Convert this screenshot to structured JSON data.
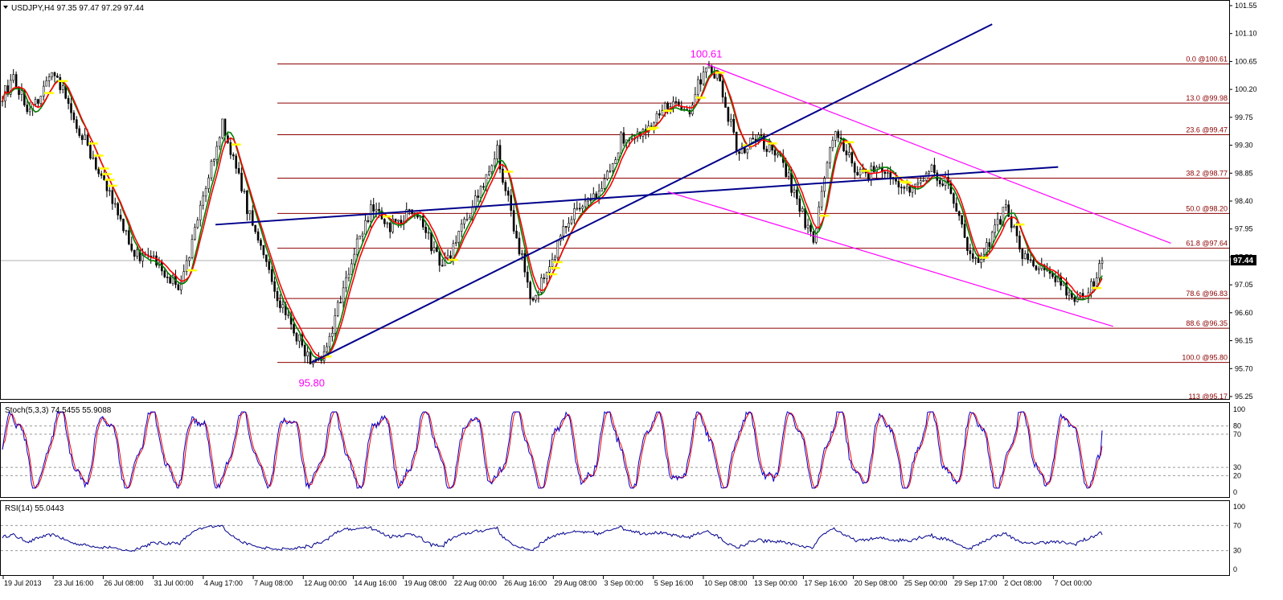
{
  "window": {
    "symbol_label": "USDJPY,H4  97.35 97.47 97.29 97.44"
  },
  "colors": {
    "candle": "#000000",
    "fib": "#8b0000",
    "channel": "#00008b",
    "downchannel": "#ff00ff",
    "ma_fast": "#ff0000",
    "ma_slow": "#008000",
    "stoch_main": "#0000cd",
    "stoch_signal": "#ff0000",
    "rsi": "#00008b",
    "highlight": "#ffff00"
  },
  "chart_data": [
    {
      "type": "candlestick",
      "name": "USDJPY,H4",
      "ohlc_label": "97.35 97.47 97.29 97.44",
      "last_price": 97.44,
      "last_price_label": "97.44",
      "ylim": [
        95.2,
        101.6
      ],
      "yticks": [
        "101.55",
        "101.10",
        "100.65",
        "100.20",
        "99.75",
        "99.30",
        "98.85",
        "98.40",
        "97.95",
        "97.50",
        "97.05",
        "96.60",
        "96.15",
        "95.70",
        "95.25"
      ],
      "xticks": [
        "19 Jul 2013",
        "23 Jul 16:00",
        "26 Jul 08:00",
        "31 Jul 00:00",
        "4 Aug 17:00",
        "7 Aug 08:00",
        "12 Aug 00:00",
        "14 Aug 16:00",
        "19 Aug 08:00",
        "22 Aug 00:00",
        "26 Aug 16:00",
        "29 Aug 08:00",
        "3 Sep 00:00",
        "5 Sep 16:00",
        "10 Sep 08:00",
        "13 Sep 00:00",
        "17 Sep 16:00",
        "20 Sep 08:00",
        "25 Sep 00:00",
        "29 Sep 17:00",
        "2 Oct 08:00",
        "7 Oct 00:00"
      ],
      "bars": 512,
      "price_path": [
        [
          0,
          100.1
        ],
        [
          8,
          100.35
        ],
        [
          20,
          99.8
        ],
        [
          38,
          100.45
        ],
        [
          55,
          99.6
        ],
        [
          70,
          98.9
        ],
        [
          95,
          97.6
        ],
        [
          112,
          97.4
        ],
        [
          130,
          97.0
        ],
        [
          148,
          98.6
        ],
        [
          160,
          99.7
        ],
        [
          178,
          98.3
        ],
        [
          200,
          96.8
        ],
        [
          225,
          95.8
        ],
        [
          236,
          96.0
        ],
        [
          250,
          97.2
        ],
        [
          268,
          98.3
        ],
        [
          282,
          98.0
        ],
        [
          300,
          98.3
        ],
        [
          320,
          97.3
        ],
        [
          342,
          98.3
        ],
        [
          360,
          99.2
        ],
        [
          372,
          98.0
        ],
        [
          385,
          96.8
        ],
        [
          398,
          97.4
        ],
        [
          412,
          98.1
        ],
        [
          435,
          98.5
        ],
        [
          450,
          99.4
        ],
        [
          468,
          99.6
        ],
        [
          480,
          99.9
        ],
        [
          500,
          99.9
        ],
        [
          512,
          100.61
        ],
        [
          522,
          100.3
        ],
        [
          535,
          99.2
        ],
        [
          550,
          99.4
        ],
        [
          568,
          99.0
        ],
        [
          590,
          97.7
        ],
        [
          605,
          99.6
        ],
        [
          622,
          98.8
        ],
        [
          640,
          98.9
        ],
        [
          660,
          98.6
        ],
        [
          675,
          98.9
        ],
        [
          690,
          98.6
        ],
        [
          705,
          97.4
        ],
        [
          712,
          97.5
        ],
        [
          730,
          98.3
        ],
        [
          745,
          97.4
        ],
        [
          760,
          97.3
        ],
        [
          780,
          96.8
        ],
        [
          792,
          97.0
        ],
        [
          800,
          97.44
        ]
      ],
      "fib_levels": [
        {
          "label": "0.0 @100.61",
          "price": 100.61
        },
        {
          "label": "13.0 @99.98",
          "price": 99.98
        },
        {
          "label": "23.6 @99.47",
          "price": 99.47
        },
        {
          "label": "38.2 @98.77",
          "price": 98.77
        },
        {
          "label": "50.0 @98.20",
          "price": 98.2
        },
        {
          "label": "61.8 @97.64",
          "price": 97.64
        },
        {
          "label": "78.6 @96.83",
          "price": 96.83
        },
        {
          "label": "88.6 @96.35",
          "price": 96.35
        },
        {
          "label": "100.0 @95.80",
          "price": 95.8
        },
        {
          "label": "113 @95.17",
          "price": 95.17
        }
      ],
      "annotations": [
        {
          "text": "100.61",
          "bar": 512,
          "price": 100.61
        },
        {
          "text": "95.80",
          "bar": 225,
          "price": 95.8
        }
      ],
      "trendlines": [
        {
          "kind": "channel",
          "p1": [
            225,
            95.8
          ],
          "p2": [
            720,
            101.25
          ]
        },
        {
          "kind": "channel",
          "p1": [
            155,
            98.02
          ],
          "p2": [
            768,
            98.95
          ]
        },
        {
          "kind": "downchannel",
          "p1": [
            512,
            100.61
          ],
          "p2": [
            850,
            97.72
          ]
        },
        {
          "kind": "downchannel",
          "p1": [
            484,
            98.55
          ],
          "p2": [
            808,
            96.38
          ]
        }
      ]
    },
    {
      "type": "line",
      "name": "Stoch(5,3,3)",
      "label": "Stoch(5,3,3) 74.5455 55.9088",
      "series": [
        {
          "name": "main",
          "last": 74.5455
        },
        {
          "name": "signal",
          "last": 55.9088
        }
      ],
      "ylim": [
        0,
        100
      ],
      "yticks": [
        "100",
        "80",
        "70",
        "30",
        "20",
        "0"
      ],
      "levels": [
        80,
        70,
        30,
        20
      ]
    },
    {
      "type": "line",
      "name": "RSI(14)",
      "label": "RSI(14) 55.0443",
      "series": [
        {
          "name": "RSI",
          "last": 55.0443
        }
      ],
      "ylim": [
        0,
        100
      ],
      "yticks": [
        "100",
        "70",
        "30",
        "0"
      ],
      "levels": [
        70,
        30
      ]
    }
  ]
}
